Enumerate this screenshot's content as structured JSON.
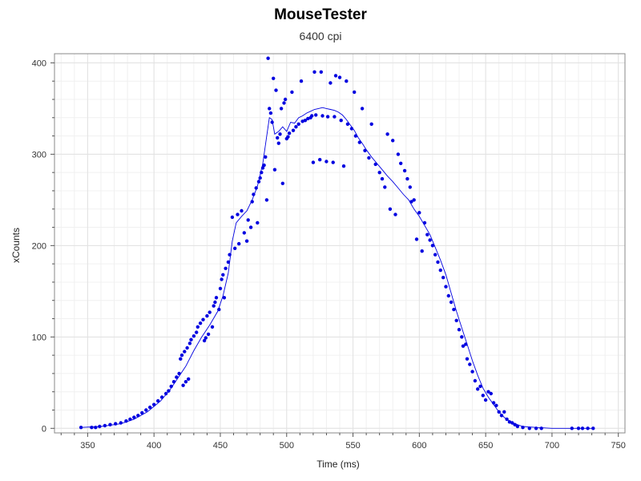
{
  "chart_data": {
    "type": "scatter",
    "title": "MouseTester",
    "subtitle": "6400 cpi",
    "xlabel": "Time (ms)",
    "ylabel": "xCounts",
    "xlim": [
      325,
      755
    ],
    "ylim": [
      -5,
      410
    ],
    "x_ticks": [
      350,
      400,
      450,
      500,
      550,
      600,
      650,
      700,
      750
    ],
    "y_ticks": [
      0,
      100,
      200,
      300,
      400
    ],
    "grid": true,
    "series_color": "#0000e0",
    "series": [
      {
        "type": "scatter",
        "points": [
          [
            345,
            1
          ],
          [
            353,
            1
          ],
          [
            356,
            1
          ],
          [
            359,
            2
          ],
          [
            363,
            3
          ],
          [
            367,
            4
          ],
          [
            371,
            5
          ],
          [
            375,
            6
          ],
          [
            379,
            8
          ],
          [
            382,
            10
          ],
          [
            385,
            12
          ],
          [
            388,
            14
          ],
          [
            391,
            17
          ],
          [
            394,
            20
          ],
          [
            397,
            23
          ],
          [
            400,
            26
          ],
          [
            403,
            30
          ],
          [
            406,
            34
          ],
          [
            409,
            38
          ],
          [
            411,
            41
          ],
          [
            413,
            46
          ],
          [
            415,
            51
          ],
          [
            417,
            56
          ],
          [
            419,
            60
          ],
          [
            420,
            76
          ],
          [
            421,
            80
          ],
          [
            422,
            47
          ],
          [
            423,
            84
          ],
          [
            424,
            51
          ],
          [
            425,
            88
          ],
          [
            426,
            54
          ],
          [
            427,
            93
          ],
          [
            428,
            97
          ],
          [
            430,
            101
          ],
          [
            432,
            105
          ],
          [
            433,
            111
          ],
          [
            435,
            115
          ],
          [
            437,
            119
          ],
          [
            438,
            96
          ],
          [
            439,
            99
          ],
          [
            440,
            123
          ],
          [
            441,
            103
          ],
          [
            442,
            127
          ],
          [
            444,
            111
          ],
          [
            445,
            134
          ],
          [
            446,
            138
          ],
          [
            447,
            143
          ],
          [
            449,
            130
          ],
          [
            450,
            153
          ],
          [
            451,
            163
          ],
          [
            452,
            168
          ],
          [
            453,
            143
          ],
          [
            454,
            175
          ],
          [
            456,
            182
          ],
          [
            457,
            190
          ],
          [
            459,
            231
          ],
          [
            461,
            197
          ],
          [
            463,
            234
          ],
          [
            464,
            202
          ],
          [
            466,
            238
          ],
          [
            468,
            214
          ],
          [
            470,
            205
          ],
          [
            471,
            228
          ],
          [
            473,
            220
          ],
          [
            474,
            248
          ],
          [
            475,
            256
          ],
          [
            477,
            263
          ],
          [
            478,
            225
          ],
          [
            479,
            270
          ],
          [
            480,
            274
          ],
          [
            481,
            280
          ],
          [
            482,
            285
          ],
          [
            483,
            288
          ],
          [
            484,
            297
          ],
          [
            485,
            250
          ],
          [
            486,
            405
          ],
          [
            487,
            350
          ],
          [
            488,
            345
          ],
          [
            489,
            335
          ],
          [
            490,
            383
          ],
          [
            491,
            283
          ],
          [
            492,
            370
          ],
          [
            493,
            318
          ],
          [
            494,
            312
          ],
          [
            495,
            322
          ],
          [
            496,
            350
          ],
          [
            497,
            268
          ],
          [
            498,
            356
          ],
          [
            499,
            360
          ],
          [
            500,
            317
          ],
          [
            501,
            319
          ],
          [
            502,
            323
          ],
          [
            504,
            368
          ],
          [
            505,
            326
          ],
          [
            507,
            330
          ],
          [
            509,
            333
          ],
          [
            511,
            380
          ],
          [
            512,
            336
          ],
          [
            514,
            337
          ],
          [
            516,
            339
          ],
          [
            518,
            340
          ],
          [
            519,
            342
          ],
          [
            520,
            291
          ],
          [
            521,
            390
          ],
          [
            522,
            343
          ],
          [
            525,
            294
          ],
          [
            526,
            390
          ],
          [
            527,
            342
          ],
          [
            530,
            292
          ],
          [
            531,
            341
          ],
          [
            533,
            378
          ],
          [
            535,
            291
          ],
          [
            536,
            341
          ],
          [
            537,
            386
          ],
          [
            540,
            384
          ],
          [
            541,
            337
          ],
          [
            543,
            287
          ],
          [
            545,
            380
          ],
          [
            546,
            333
          ],
          [
            549,
            328
          ],
          [
            551,
            368
          ],
          [
            552,
            320
          ],
          [
            555,
            313
          ],
          [
            557,
            350
          ],
          [
            559,
            304
          ],
          [
            562,
            296
          ],
          [
            564,
            333
          ],
          [
            567,
            289
          ],
          [
            570,
            280
          ],
          [
            572,
            273
          ],
          [
            574,
            264
          ],
          [
            576,
            322
          ],
          [
            578,
            240
          ],
          [
            580,
            315
          ],
          [
            582,
            234
          ],
          [
            584,
            300
          ],
          [
            586,
            290
          ],
          [
            589,
            282
          ],
          [
            591,
            273
          ],
          [
            593,
            264
          ],
          [
            594,
            248
          ],
          [
            596,
            250
          ],
          [
            598,
            207
          ],
          [
            600,
            236
          ],
          [
            602,
            194
          ],
          [
            604,
            225
          ],
          [
            606,
            212
          ],
          [
            608,
            206
          ],
          [
            610,
            200
          ],
          [
            612,
            190
          ],
          [
            614,
            182
          ],
          [
            616,
            173
          ],
          [
            618,
            165
          ],
          [
            620,
            155
          ],
          [
            622,
            145
          ],
          [
            624,
            138
          ],
          [
            626,
            130
          ],
          [
            628,
            118
          ],
          [
            630,
            108
          ],
          [
            632,
            100
          ],
          [
            633,
            90
          ],
          [
            635,
            92
          ],
          [
            636,
            76
          ],
          [
            638,
            70
          ],
          [
            640,
            62
          ],
          [
            642,
            52
          ],
          [
            644,
            43
          ],
          [
            646,
            46
          ],
          [
            648,
            36
          ],
          [
            650,
            31
          ],
          [
            652,
            40
          ],
          [
            654,
            38
          ],
          [
            656,
            28
          ],
          [
            658,
            25
          ],
          [
            660,
            18
          ],
          [
            662,
            14
          ],
          [
            664,
            18
          ],
          [
            666,
            10
          ],
          [
            668,
            7
          ],
          [
            670,
            6
          ],
          [
            672,
            4
          ],
          [
            674,
            2
          ],
          [
            678,
            1
          ],
          [
            683,
            0
          ],
          [
            688,
            0
          ],
          [
            692,
            0
          ],
          [
            715,
            0
          ],
          [
            720,
            0
          ],
          [
            723,
            0
          ],
          [
            727,
            0
          ],
          [
            731,
            0
          ]
        ]
      },
      {
        "type": "line",
        "points": [
          [
            345,
            1
          ],
          [
            360,
            2
          ],
          [
            375,
            5
          ],
          [
            385,
            10
          ],
          [
            395,
            18
          ],
          [
            405,
            30
          ],
          [
            412,
            42
          ],
          [
            418,
            55
          ],
          [
            424,
            68
          ],
          [
            430,
            85
          ],
          [
            436,
            100
          ],
          [
            442,
            113
          ],
          [
            448,
            128
          ],
          [
            452,
            145
          ],
          [
            456,
            170
          ],
          [
            459,
            205
          ],
          [
            462,
            225
          ],
          [
            466,
            232
          ],
          [
            470,
            238
          ],
          [
            474,
            250
          ],
          [
            478,
            265
          ],
          [
            482,
            290
          ],
          [
            485,
            320
          ],
          [
            487,
            340
          ],
          [
            489,
            338
          ],
          [
            491,
            322
          ],
          [
            494,
            325
          ],
          [
            497,
            330
          ],
          [
            500,
            325
          ],
          [
            503,
            335
          ],
          [
            506,
            334
          ],
          [
            509,
            340
          ],
          [
            512,
            342
          ],
          [
            515,
            345
          ],
          [
            518,
            347
          ],
          [
            521,
            349
          ],
          [
            524,
            350
          ],
          [
            527,
            351
          ],
          [
            530,
            350
          ],
          [
            533,
            349
          ],
          [
            536,
            348
          ],
          [
            539,
            346
          ],
          [
            542,
            343
          ],
          [
            545,
            338
          ],
          [
            548,
            332
          ],
          [
            551,
            326
          ],
          [
            554,
            318
          ],
          [
            557,
            312
          ],
          [
            560,
            305
          ],
          [
            564,
            297
          ],
          [
            568,
            290
          ],
          [
            572,
            283
          ],
          [
            576,
            276
          ],
          [
            580,
            270
          ],
          [
            584,
            263
          ],
          [
            588,
            256
          ],
          [
            592,
            250
          ],
          [
            596,
            240
          ],
          [
            600,
            232
          ],
          [
            604,
            222
          ],
          [
            608,
            212
          ],
          [
            612,
            198
          ],
          [
            616,
            184
          ],
          [
            620,
            168
          ],
          [
            624,
            148
          ],
          [
            628,
            128
          ],
          [
            632,
            110
          ],
          [
            636,
            92
          ],
          [
            640,
            74
          ],
          [
            644,
            58
          ],
          [
            648,
            44
          ],
          [
            652,
            34
          ],
          [
            656,
            26
          ],
          [
            660,
            18
          ],
          [
            664,
            12
          ],
          [
            668,
            8
          ],
          [
            672,
            5
          ],
          [
            678,
            2
          ],
          [
            688,
            1
          ],
          [
            700,
            0
          ],
          [
            715,
            0
          ],
          [
            730,
            0
          ]
        ]
      }
    ]
  }
}
